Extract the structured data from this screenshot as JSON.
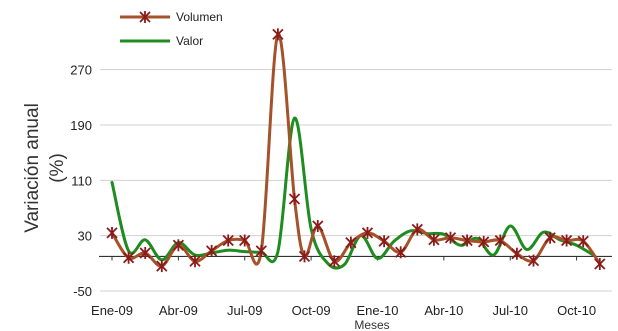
{
  "chart_data": {
    "type": "line",
    "ylabel_line1": "Variación anual",
    "ylabel_line2": "(%)",
    "xlabel": "Meses",
    "ylim": [
      -50,
      310
    ],
    "yticks": [
      -50,
      30,
      110,
      190,
      270
    ],
    "xticks": [
      {
        "x": 0,
        "label": "Ene-09"
      },
      {
        "x": 3,
        "label": "Abr-09"
      },
      {
        "x": 6,
        "label": "Jul-09"
      },
      {
        "x": 9,
        "label": "Oct-09"
      },
      {
        "x": 12,
        "label": "Ene-10"
      },
      {
        "x": 15,
        "label": "Abr-10"
      },
      {
        "x": 18,
        "label": "Jul-10"
      },
      {
        "x": 21,
        "label": "Oct-10"
      }
    ],
    "grid": "horizontal",
    "legend_position": "top-left",
    "series": [
      {
        "name": "Volumen",
        "color": "#A5522B",
        "marker": "asterisk",
        "marker_color": "#8B1A1A",
        "x": [
          0,
          0.75,
          1.5,
          2.25,
          3,
          3.75,
          4.5,
          5.25,
          6,
          6.75,
          7.5,
          8.25,
          8.7,
          9.3,
          10.05,
          10.8,
          11.55,
          12.3,
          13.05,
          13.8,
          14.55,
          15.3,
          16.05,
          16.8,
          17.55,
          18.3,
          19.05,
          19.8,
          20.55,
          21.3,
          22.05
        ],
        "values": [
          34,
          -2,
          5,
          -14,
          16,
          -7,
          8,
          23,
          23,
          8,
          321,
          83,
          0,
          44,
          -7,
          20,
          34,
          22,
          6,
          39,
          24,
          27,
          23,
          21,
          23,
          4,
          -6,
          27,
          23,
          22,
          -11
        ]
      },
      {
        "name": "Valor",
        "color": "#1E8C1E",
        "x": [
          0,
          0.75,
          1.5,
          2.25,
          3,
          3.75,
          4.5,
          5.25,
          6,
          6.75,
          7.5,
          8.25,
          9.0,
          9.75,
          10.5,
          11.25,
          12.0,
          12.75,
          13.5,
          14.25,
          15.0,
          15.75,
          16.5,
          17.25,
          18.0,
          18.75,
          19.5,
          20.25,
          21.0,
          21.75
        ],
        "values": [
          107,
          8,
          24,
          -5,
          20,
          2,
          5,
          9,
          7,
          6,
          7,
          200,
          40,
          -10,
          -12,
          30,
          -3,
          22,
          37,
          33,
          32,
          16,
          26,
          2,
          44,
          10,
          35,
          24,
          16,
          2
        ]
      }
    ]
  }
}
